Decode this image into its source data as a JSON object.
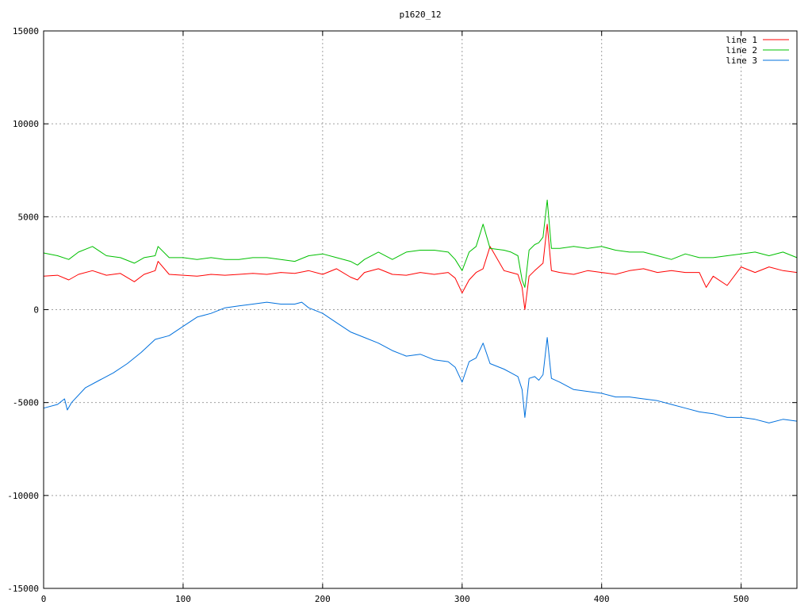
{
  "chart_data": {
    "type": "line",
    "title": "p1620_12",
    "xlabel": "",
    "ylabel": "",
    "xlim": [
      0,
      540
    ],
    "ylim": [
      -15000,
      15000
    ],
    "x_ticks": [
      0,
      100,
      200,
      300,
      400,
      500
    ],
    "y_ticks": [
      -15000,
      -10000,
      -5000,
      0,
      5000,
      10000,
      15000
    ],
    "grid": true,
    "legend_position": "top-right",
    "series": [
      {
        "name": "line 1",
        "color": "#ff0000",
        "x": [
          0,
          10,
          18,
          25,
          35,
          45,
          55,
          65,
          72,
          80,
          82,
          90,
          100,
          110,
          120,
          130,
          140,
          150,
          160,
          170,
          180,
          190,
          200,
          210,
          220,
          225,
          230,
          240,
          250,
          260,
          270,
          280,
          290,
          295,
          300,
          305,
          310,
          315,
          320,
          330,
          335,
          340,
          343,
          345,
          348,
          352,
          355,
          358,
          361,
          364,
          370,
          380,
          390,
          400,
          410,
          420,
          430,
          440,
          450,
          460,
          470,
          475,
          480,
          490,
          500,
          510,
          520,
          530,
          540
        ],
        "y": [
          1800,
          1850,
          1600,
          1900,
          2100,
          1850,
          1950,
          1500,
          1900,
          2100,
          2600,
          1900,
          1850,
          1800,
          1900,
          1850,
          1900,
          1950,
          1900,
          2000,
          1950,
          2100,
          1900,
          2200,
          1750,
          1600,
          2000,
          2200,
          1900,
          1850,
          2000,
          1900,
          2000,
          1700,
          900,
          1600,
          2000,
          2200,
          3400,
          2100,
          2000,
          1900,
          1200,
          0,
          1800,
          2100,
          2300,
          2500,
          4600,
          2100,
          2000,
          1900,
          2100,
          2000,
          1900,
          2100,
          2200,
          2000,
          2100,
          2000,
          2000,
          1200,
          1800,
          1300,
          2300,
          2000,
          2300,
          2100,
          2000
        ]
      },
      {
        "name": "line 2",
        "color": "#00c000",
        "x": [
          0,
          10,
          18,
          25,
          35,
          45,
          55,
          65,
          72,
          80,
          82,
          90,
          100,
          110,
          120,
          130,
          140,
          150,
          160,
          170,
          180,
          190,
          200,
          210,
          220,
          225,
          230,
          240,
          250,
          260,
          270,
          280,
          290,
          295,
          300,
          305,
          310,
          315,
          320,
          330,
          335,
          340,
          343,
          345,
          348,
          352,
          355,
          358,
          361,
          364,
          370,
          380,
          390,
          400,
          410,
          420,
          430,
          440,
          450,
          460,
          470,
          480,
          490,
          500,
          510,
          520,
          530,
          540
        ],
        "y": [
          3050,
          2900,
          2700,
          3100,
          3400,
          2900,
          2800,
          2500,
          2800,
          2900,
          3400,
          2800,
          2800,
          2700,
          2800,
          2700,
          2700,
          2800,
          2800,
          2700,
          2600,
          2900,
          3000,
          2800,
          2600,
          2400,
          2700,
          3100,
          2700,
          3100,
          3200,
          3200,
          3100,
          2700,
          2100,
          3100,
          3400,
          4600,
          3300,
          3200,
          3100,
          2900,
          1600,
          1200,
          3200,
          3500,
          3600,
          3900,
          5900,
          3300,
          3300,
          3400,
          3300,
          3400,
          3200,
          3100,
          3100,
          2900,
          2700,
          3000,
          2800,
          2800,
          2900,
          3000,
          3100,
          2900,
          3100,
          2800
        ]
      },
      {
        "name": "line 3",
        "color": "#0070dd",
        "x": [
          0,
          10,
          15,
          17,
          20,
          30,
          40,
          50,
          60,
          70,
          80,
          90,
          100,
          110,
          120,
          130,
          140,
          150,
          160,
          170,
          180,
          185,
          190,
          200,
          210,
          220,
          230,
          240,
          250,
          260,
          270,
          280,
          290,
          295,
          300,
          305,
          310,
          315,
          320,
          330,
          335,
          340,
          343,
          345,
          348,
          352,
          355,
          358,
          361,
          364,
          370,
          380,
          390,
          400,
          410,
          420,
          430,
          440,
          450,
          460,
          470,
          480,
          490,
          500,
          510,
          520,
          530,
          540
        ],
        "y": [
          -5300,
          -5100,
          -4800,
          -5400,
          -5000,
          -4200,
          -3800,
          -3400,
          -2900,
          -2300,
          -1600,
          -1400,
          -900,
          -400,
          -200,
          100,
          200,
          300,
          400,
          300,
          300,
          400,
          100,
          -200,
          -700,
          -1200,
          -1500,
          -1800,
          -2200,
          -2500,
          -2400,
          -2700,
          -2800,
          -3100,
          -3900,
          -2800,
          -2600,
          -1800,
          -2900,
          -3200,
          -3400,
          -3600,
          -4300,
          -5800,
          -3700,
          -3600,
          -3800,
          -3500,
          -1500,
          -3700,
          -3900,
          -4300,
          -4400,
          -4500,
          -4700,
          -4700,
          -4800,
          -4900,
          -5100,
          -5300,
          -5500,
          -5600,
          -5800,
          -5800,
          -5900,
          -6100,
          -5900,
          -6000
        ]
      }
    ]
  }
}
